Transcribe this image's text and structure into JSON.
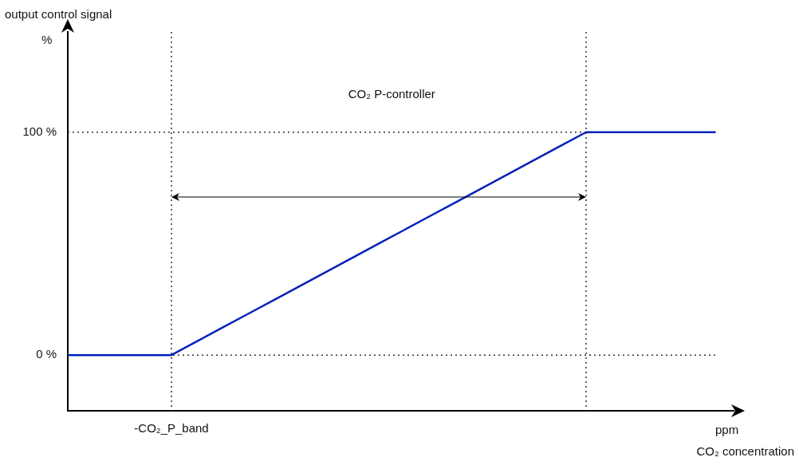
{
  "chart_data": {
    "type": "line",
    "title": "CO₂ P-controller",
    "xlabel": "ppm\nCO₂ concentration",
    "ylabel": "output control signal\n%",
    "categories": [
      null,
      null,
      null,
      null,
      "-CO₂_P_band",
      null,
      null,
      null,
      null,
      null,
      null,
      null,
      null,
      null,
      null,
      null,
      null,
      null,
      null,
      null,
      null,
      null,
      null,
      null,
      null,
      null
    ],
    "series": [
      {
        "color": "#0022bb",
        "values": [
          0,
          0,
          0,
          0,
          0,
          6.25,
          12.5,
          18.75,
          25,
          31.25,
          37.5,
          43.75,
          50,
          56.25,
          62.5,
          68.75,
          75,
          81.25,
          87.5,
          93.75,
          100,
          100,
          100,
          100,
          100,
          100
        ]
      }
    ],
    "ylim": [
      -25,
      145
    ],
    "yticks": [
      {
        "value": 0,
        "label": "0 %"
      },
      {
        "value": 100,
        "label": "100 %"
      }
    ],
    "ref_lines": [
      {
        "axis": "y",
        "value": 0,
        "line_style": "dotted",
        "color": "#333333"
      },
      {
        "axis": "y",
        "value": 100,
        "line_style": "dotted",
        "color": "#333333"
      }
    ],
    "grid": false,
    "legend": false,
    "marker": "none",
    "line_style": "solid"
  }
}
